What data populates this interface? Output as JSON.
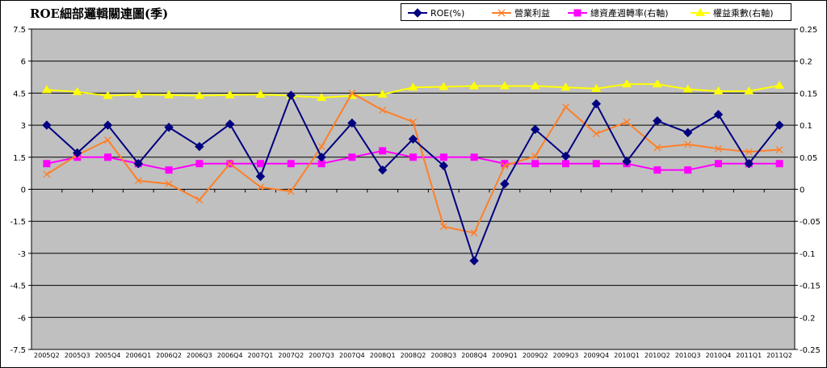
{
  "chart_data": {
    "type": "line",
    "title": "ROE細部邏輯關連圖(季)",
    "categories": [
      "2005Q2",
      "2005Q3",
      "2005Q4",
      "2006Q1",
      "2006Q2",
      "2006Q3",
      "2006Q4",
      "2007Q1",
      "2007Q2",
      "2007Q3",
      "2007Q4",
      "2008Q1",
      "2008Q2",
      "2008Q3",
      "2008Q4",
      "2009Q1",
      "2009Q2",
      "2009Q3",
      "2009Q4",
      "2010Q1",
      "2010Q2",
      "2010Q3",
      "2010Q4",
      "2011Q1",
      "2011Q2"
    ],
    "y_left": {
      "min": -7.5,
      "max": 7.5,
      "step": 1.5,
      "tick_labels": [
        "7.5",
        "6",
        "4.5",
        "3",
        "1.5",
        "0",
        "-1.5",
        "-3",
        "-4.5",
        "-6",
        "-7.5"
      ]
    },
    "y_right": {
      "min": -0.25,
      "max": 0.25,
      "step": 0.05,
      "tick_labels": [
        "0.25",
        "0.2",
        "0.15",
        "0.1",
        "0.05",
        "0",
        "-0.05",
        "-0.1",
        "-0.15",
        "-0.2",
        "-0.25"
      ]
    },
    "grid": "horizontal",
    "legend_position": "top-right",
    "series": [
      {
        "name": "ROE(%)",
        "axis": "left",
        "color": "#000080",
        "marker": "diamond",
        "values": [
          3.0,
          1.7,
          3.0,
          1.2,
          2.9,
          2.0,
          3.05,
          0.6,
          4.4,
          1.5,
          3.1,
          0.9,
          2.35,
          1.1,
          -3.35,
          0.25,
          2.8,
          1.55,
          4.0,
          1.3,
          3.2,
          2.65,
          3.5,
          1.2,
          3.0
        ]
      },
      {
        "name": "營業利益",
        "axis": "left",
        "color": "#ff7f27",
        "marker": "x",
        "values": [
          0.7,
          1.6,
          2.3,
          0.4,
          0.25,
          -0.5,
          1.2,
          0.1,
          -0.1,
          2.0,
          4.5,
          3.7,
          3.15,
          -1.75,
          -2.05,
          1.1,
          1.55,
          3.85,
          2.6,
          3.15,
          1.95,
          2.1,
          1.9,
          1.75,
          1.85
        ]
      },
      {
        "name": "總資產週轉率(右軸)",
        "axis": "right",
        "color": "#ff00ff",
        "marker": "square",
        "values": [
          0.04,
          0.05,
          0.05,
          0.04,
          0.03,
          0.04,
          0.04,
          0.04,
          0.04,
          0.04,
          0.05,
          0.06,
          0.05,
          0.05,
          0.05,
          0.04,
          0.04,
          0.04,
          0.04,
          0.04,
          0.03,
          0.03,
          0.04,
          0.04,
          0.04
        ]
      },
      {
        "name": "權益乘數(右軸)",
        "axis": "right",
        "color": "#ffff00",
        "marker": "triangle",
        "values": [
          0.155,
          0.152,
          0.146,
          0.148,
          0.147,
          0.146,
          0.147,
          0.148,
          0.146,
          0.143,
          0.146,
          0.148,
          0.159,
          0.16,
          0.161,
          0.161,
          0.161,
          0.159,
          0.157,
          0.164,
          0.164,
          0.156,
          0.153,
          0.153,
          0.162
        ]
      }
    ]
  }
}
